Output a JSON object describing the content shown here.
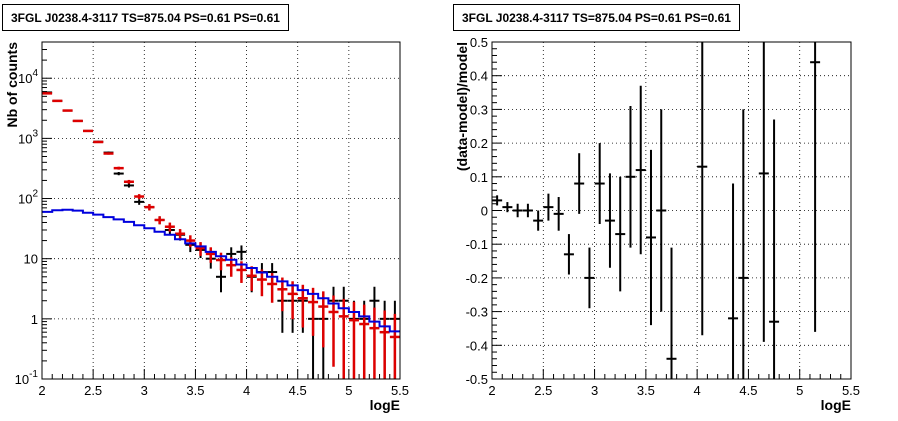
{
  "chart_data": [
    {
      "type": "scatter",
      "title": "3FGL J0238.4-3117 TS=875.04 PS=0.61 PS=0.61",
      "xlabel": "logE",
      "ylabel": "Nb of counts",
      "xscale": "linear",
      "yscale": "log",
      "xlim": [
        2,
        5.5
      ],
      "ylim": [
        0.1,
        40000
      ],
      "grid": true,
      "x_ticks": [
        "2",
        "2.5",
        "3",
        "3.5",
        "4",
        "4.5",
        "5",
        "5.5"
      ],
      "y_ticks": [
        {
          "value": 0.1,
          "label": "10",
          "exp": "-1"
        },
        {
          "value": 1,
          "label": "1",
          "exp": ""
        },
        {
          "value": 10,
          "label": "10",
          "exp": ""
        },
        {
          "value": 100,
          "label": "10",
          "exp": "2"
        },
        {
          "value": 1000,
          "label": "10",
          "exp": "3"
        },
        {
          "value": 10000,
          "label": "10",
          "exp": "4"
        }
      ],
      "series": [
        {
          "color": "#000000",
          "x": [
            2.05,
            2.15,
            2.25,
            2.35,
            2.45,
            2.55,
            2.65,
            2.75,
            2.85,
            2.95,
            3.05,
            3.15,
            3.25,
            3.35,
            3.45,
            3.55,
            3.65,
            3.75,
            3.85,
            3.95,
            4.05,
            4.15,
            4.25,
            4.35,
            4.45,
            4.55,
            4.65,
            4.75,
            4.85,
            4.95,
            5.05,
            5.15,
            5.25,
            5.35,
            5.45
          ],
          "y": [
            5800,
            4200,
            2900,
            1950,
            1330,
            880,
            580,
            260,
            165,
            88,
            72,
            44,
            30,
            25,
            17,
            14,
            10,
            5,
            12,
            13,
            5,
            6,
            6,
            2,
            2,
            2,
            1,
            1,
            2,
            2,
            1,
            1,
            2,
            1,
            1
          ]
        },
        {
          "color": "#dd0000",
          "x": [
            2.05,
            2.15,
            2.25,
            2.35,
            2.45,
            2.55,
            2.65,
            2.75,
            2.85,
            2.95,
            3.05,
            3.15,
            3.25,
            3.35,
            3.45,
            3.55,
            3.65,
            3.75,
            3.85,
            3.95,
            4.05,
            4.15,
            4.25,
            4.35,
            4.45,
            4.55,
            4.65,
            4.75,
            4.85,
            4.95,
            5.05,
            5.15,
            5.25,
            5.35,
            5.45
          ],
          "y": [
            5600,
            4200,
            2900,
            1950,
            1330,
            870,
            560,
            320,
            190,
            108,
            72,
            44,
            34,
            26,
            20,
            15,
            12,
            9.5,
            7.8,
            6.5,
            5.2,
            4.5,
            3.8,
            3.1,
            2.6,
            2.2,
            1.9,
            1.6,
            1.3,
            1.1,
            0.95,
            0.82,
            0.7,
            0.6,
            0.5
          ]
        },
        {
          "color": "#0000dd",
          "x": [
            2.0,
            2.1,
            2.2,
            2.3,
            2.4,
            2.5,
            2.6,
            2.7,
            2.8,
            2.9,
            3.0,
            3.1,
            3.2,
            3.3,
            3.4,
            3.5,
            3.6,
            3.7,
            3.8,
            3.9,
            4.0,
            4.1,
            4.2,
            4.3,
            4.4,
            4.5,
            4.6,
            4.7,
            4.8,
            4.9,
            5.0,
            5.1,
            5.2,
            5.3,
            5.4
          ],
          "y": [
            60,
            64,
            65,
            63,
            58,
            54,
            49,
            45,
            41,
            36,
            32,
            28,
            25,
            21,
            18,
            16,
            13,
            11,
            9.6,
            8,
            7,
            5.9,
            5,
            4.2,
            3.6,
            3,
            2.6,
            2.2,
            1.8,
            1.5,
            1.3,
            1.1,
            0.9,
            0.75,
            0.62
          ]
        }
      ]
    },
    {
      "type": "scatter",
      "title": "3FGL J0238.4-3117 TS=875.04 PS=0.61 PS=0.61",
      "xlabel": "logE",
      "ylabel": "(data-model)/model",
      "xlim": [
        2,
        5.5
      ],
      "ylim": [
        -0.5,
        0.5
      ],
      "grid": true,
      "x_ticks": [
        "2",
        "2.5",
        "3",
        "3.5",
        "4",
        "4.5",
        "5",
        "5.5"
      ],
      "y_ticks": [
        "-0.5",
        "-0.4",
        "-0.3",
        "-0.2",
        "-0.1",
        "0",
        "0.1",
        "0.2",
        "0.3",
        "0.4",
        "0.5"
      ],
      "series": [
        {
          "color": "#000000",
          "x": [
            2.05,
            2.15,
            2.25,
            2.35,
            2.45,
            2.55,
            2.65,
            2.75,
            2.85,
            2.95,
            3.05,
            3.15,
            3.25,
            3.35,
            3.45,
            3.55,
            3.65,
            3.75,
            4.05,
            4.35,
            4.45,
            4.65,
            4.75,
            5.15
          ],
          "y": [
            0.03,
            0.01,
            0.0,
            0.0,
            -0.03,
            0.01,
            -0.01,
            -0.13,
            0.08,
            -0.2,
            0.08,
            -0.03,
            -0.07,
            0.1,
            0.12,
            -0.08,
            0.0,
            -0.44,
            0.13,
            -0.32,
            -0.2,
            0.11,
            -0.33,
            0.44
          ],
          "err": [
            0.015,
            0.015,
            0.02,
            0.02,
            0.03,
            0.04,
            0.05,
            0.06,
            0.09,
            0.09,
            0.12,
            0.14,
            0.17,
            0.21,
            0.25,
            0.26,
            0.3,
            0.33,
            0.5,
            0.4,
            0.5,
            0.5,
            0.6,
            0.8
          ]
        }
      ]
    }
  ]
}
